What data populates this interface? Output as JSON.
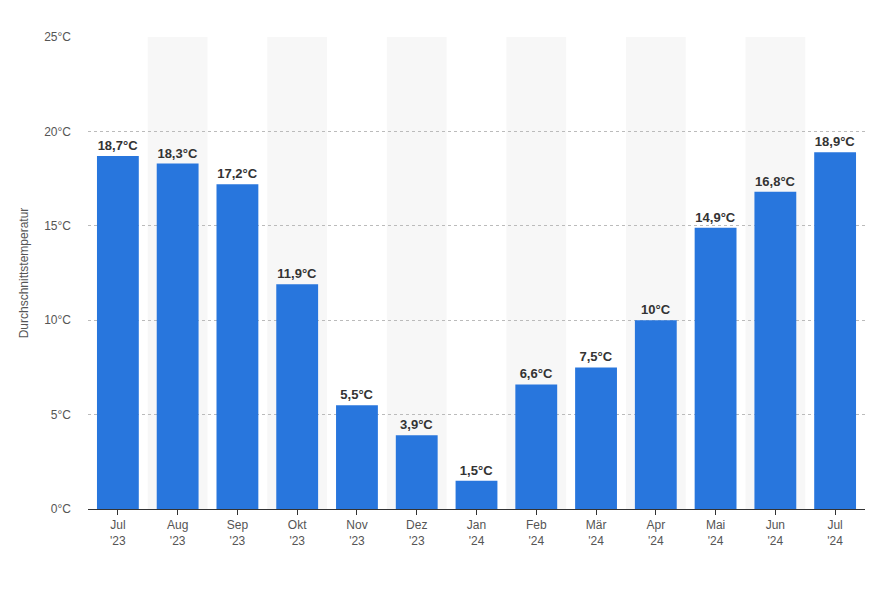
{
  "chart_data": {
    "type": "bar",
    "y_label": "Durchschnittstemperatur",
    "categories": [
      "Jul '23",
      "Aug '23",
      "Sep '23",
      "Okt '23",
      "Nov '23",
      "Dez '23",
      "Jan '24",
      "Feb '24",
      "Mär '24",
      "Apr '24",
      "Mai '24",
      "Jun '24",
      "Jul '24"
    ],
    "values": [
      18.7,
      18.3,
      17.2,
      11.9,
      5.5,
      3.9,
      1.5,
      6.6,
      7.5,
      10,
      14.9,
      16.8,
      18.9
    ],
    "value_labels": [
      "18,7°C",
      "18,3°C",
      "17,2°C",
      "11,9°C",
      "5,5°C",
      "3,9°C",
      "1,5°C",
      "6,6°C",
      "7,5°C",
      "10°C",
      "14,9°C",
      "16,8°C",
      "18,9°C"
    ],
    "color": "#2876dd",
    "ylim": [
      0,
      25
    ],
    "yticks": [
      {
        "value": 0,
        "label": "0°C"
      },
      {
        "value": 5,
        "label": "5°C"
      },
      {
        "value": 10,
        "label": "10°C"
      },
      {
        "value": 15,
        "label": "15°C"
      },
      {
        "value": 20,
        "label": "20°C"
      },
      {
        "value": 25,
        "label": "25°C"
      }
    ],
    "grid": true,
    "data_labels": true
  }
}
